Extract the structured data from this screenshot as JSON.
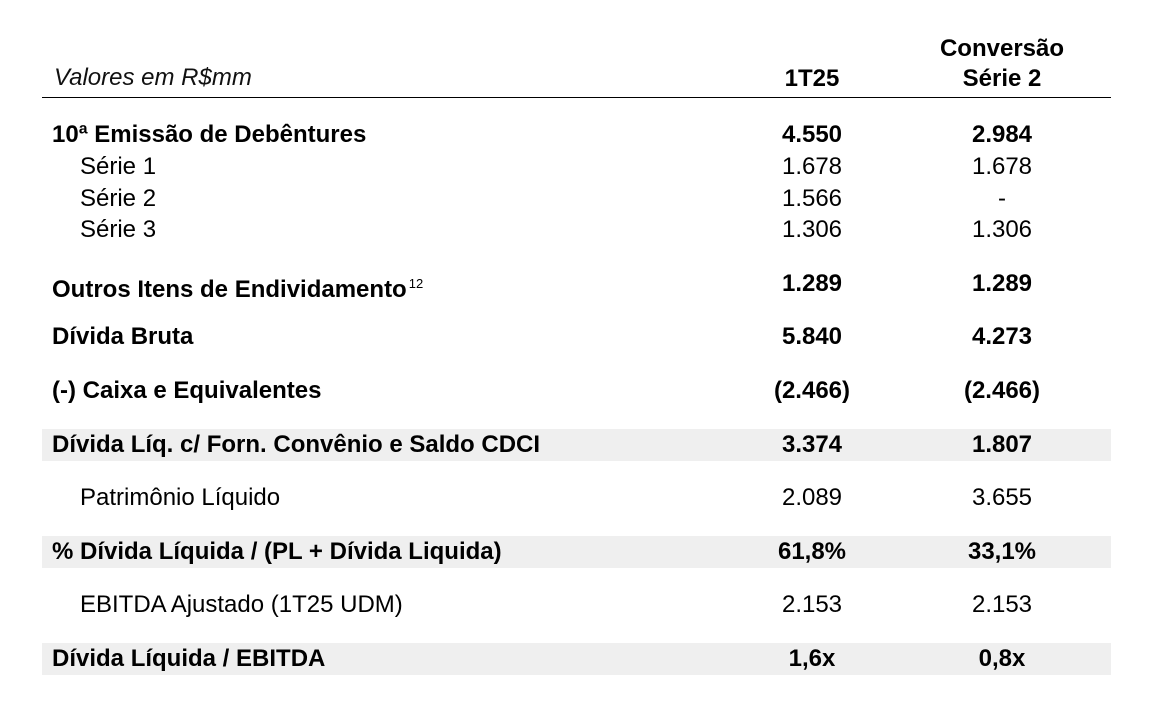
{
  "header": {
    "label": "Valores em R$mm",
    "col1": "1T25",
    "col2_line1": "Conversão",
    "col2_line2": "Série 2"
  },
  "rows": [
    {
      "label": "10ª Emissão de Debêntures",
      "v1": "4.550",
      "v2": "2.984"
    },
    {
      "label": "Série 1",
      "v1": "1.678",
      "v2": "1.678"
    },
    {
      "label": "Série 2",
      "v1": "1.566",
      "v2": "-"
    },
    {
      "label": "Série 3",
      "v1": "1.306",
      "v2": "1.306"
    },
    {
      "label": "Outros Itens de Endividamento",
      "sup": "12",
      "v1": "1.289",
      "v2": "1.289"
    },
    {
      "label": "Dívida Bruta",
      "v1": "5.840",
      "v2": "4.273"
    },
    {
      "label": "(-) Caixa e Equivalentes",
      "v1": "(2.466)",
      "v2": "(2.466)"
    },
    {
      "label": "Dívida Líq. c/ Forn. Convênio e Saldo CDCI",
      "v1": "3.374",
      "v2": "1.807"
    },
    {
      "label": "Patrimônio Líquido",
      "v1": "2.089",
      "v2": "3.655"
    },
    {
      "label": "% Dívida Líquida / (PL + Dívida Liquida)",
      "v1": "61,8%",
      "v2": "33,1%"
    },
    {
      "label": "EBITDA Ajustado (1T25 UDM)",
      "v1": "2.153",
      "v2": "2.153"
    },
    {
      "label": "Dívida Líquida / EBITDA",
      "v1": "1,6x",
      "v2": "0,8x"
    }
  ]
}
